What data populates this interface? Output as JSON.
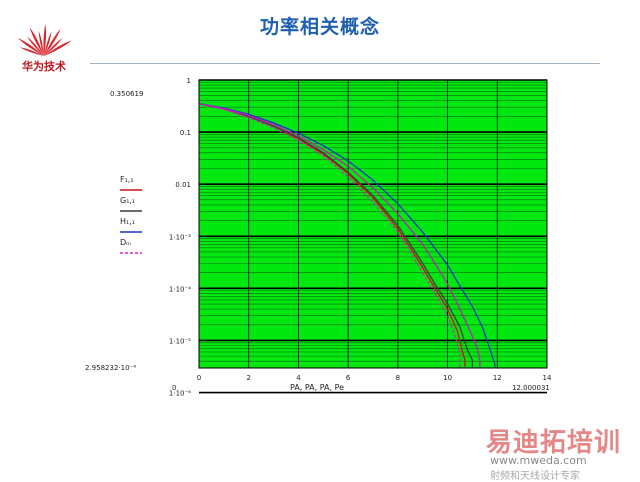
{
  "header": {
    "title": "功率相关概念",
    "company": "华为技术"
  },
  "watermark": {
    "brand": "易迪拓培训",
    "url": "www.mweda.com",
    "subtitle": "射频和天线设计专家"
  },
  "chart_data": {
    "type": "line",
    "yscale": "log",
    "xlim": [
      0,
      14
    ],
    "ylim": [
      2.958232e-06,
      1
    ],
    "grid": true,
    "x_ticks": [
      "0",
      "2",
      "4",
      "6",
      "8",
      "10",
      "12",
      "14"
    ],
    "y_ticks": [
      "1",
      "0.1",
      "0.01",
      "1·10⁻³",
      "1·10⁻⁴",
      "1·10⁻⁵",
      "1·10⁻⁶"
    ],
    "y_corner_top": "0.350619",
    "y_corner_bottom": "2.958232·10⁻⁶",
    "x_corner_left": "0",
    "x_corner_right": "12.000031",
    "xlabel": "PA, PA, PA, Pe",
    "legend": [
      "F₁,₁",
      "G₁,₁",
      "H₁,₁",
      "Dₘ"
    ],
    "series": [
      {
        "name": "F₁,₁",
        "color": "#d01010",
        "dash": false,
        "points": [
          [
            0,
            0.35
          ],
          [
            1,
            0.28
          ],
          [
            2,
            0.2
          ],
          [
            3,
            0.13
          ],
          [
            4,
            0.075
          ],
          [
            5,
            0.038
          ],
          [
            6,
            0.016
          ],
          [
            7,
            0.0055
          ],
          [
            8,
            0.0014
          ],
          [
            8.5,
            0.0006
          ],
          [
            9,
            0.00025
          ],
          [
            9.5,
            0.0001
          ],
          [
            10,
            4e-05
          ],
          [
            10.4,
            1.5e-05
          ],
          [
            10.6,
            6e-06
          ],
          [
            10.7,
            4.2e-06
          ]
        ]
      },
      {
        "name": "G₁,₁",
        "color": "#3c3c3c",
        "dash": false,
        "points": [
          [
            0,
            0.35
          ],
          [
            1,
            0.28
          ],
          [
            2,
            0.2
          ],
          [
            3,
            0.13
          ],
          [
            4,
            0.078
          ],
          [
            5,
            0.04
          ],
          [
            6,
            0.017
          ],
          [
            7,
            0.006
          ],
          [
            8,
            0.0016
          ],
          [
            8.5,
            0.0007
          ],
          [
            9,
            0.0003
          ],
          [
            9.5,
            0.00012
          ],
          [
            10,
            5e-05
          ],
          [
            10.5,
            1.8e-05
          ],
          [
            10.8,
            6.5e-06
          ],
          [
            11,
            4.2e-06
          ]
        ]
      },
      {
        "name": "H₁,₁",
        "color": "#1e32c8",
        "dash": false,
        "points": [
          [
            0,
            0.35
          ],
          [
            1,
            0.29
          ],
          [
            2,
            0.22
          ],
          [
            3,
            0.15
          ],
          [
            4,
            0.095
          ],
          [
            5,
            0.055
          ],
          [
            6,
            0.028
          ],
          [
            7,
            0.012
          ],
          [
            8,
            0.0042
          ],
          [
            9,
            0.0012
          ],
          [
            10,
            0.00028
          ],
          [
            10.5,
            0.00011
          ],
          [
            11,
            4.5e-05
          ],
          [
            11.4,
            1.8e-05
          ],
          [
            11.7,
            7e-06
          ],
          [
            11.9,
            3.5e-06
          ]
        ]
      },
      {
        "name": "Dₘ",
        "color": "#e020c0",
        "dash": true,
        "points": [
          [
            0,
            0.35
          ],
          [
            1,
            0.27
          ],
          [
            2,
            0.19
          ],
          [
            3,
            0.12
          ],
          [
            4,
            0.07
          ],
          [
            5,
            0.035
          ],
          [
            6,
            0.014
          ],
          [
            7,
            0.0045
          ],
          [
            8,
            0.0012
          ],
          [
            8.5,
            0.0005
          ],
          [
            9,
            0.0002
          ],
          [
            9.5,
            8e-05
          ],
          [
            10,
            3e-05
          ],
          [
            10.3,
            1.2e-05
          ],
          [
            10.5,
            6e-06
          ]
        ]
      },
      {
        "name": "",
        "color": "#c020b0",
        "dash": false,
        "points": [
          [
            0,
            0.35
          ],
          [
            1,
            0.28
          ],
          [
            2,
            0.21
          ],
          [
            3,
            0.14
          ],
          [
            4,
            0.085
          ],
          [
            5,
            0.046
          ],
          [
            6,
            0.022
          ],
          [
            7,
            0.0085
          ],
          [
            8,
            0.0027
          ],
          [
            9,
            0.0007
          ],
          [
            9.5,
            0.0003
          ],
          [
            10,
            0.00012
          ],
          [
            10.5,
            4e-05
          ],
          [
            11,
            1.2e-05
          ],
          [
            11.2,
            7e-06
          ],
          [
            11.3,
            4.2e-06
          ]
        ]
      }
    ]
  }
}
